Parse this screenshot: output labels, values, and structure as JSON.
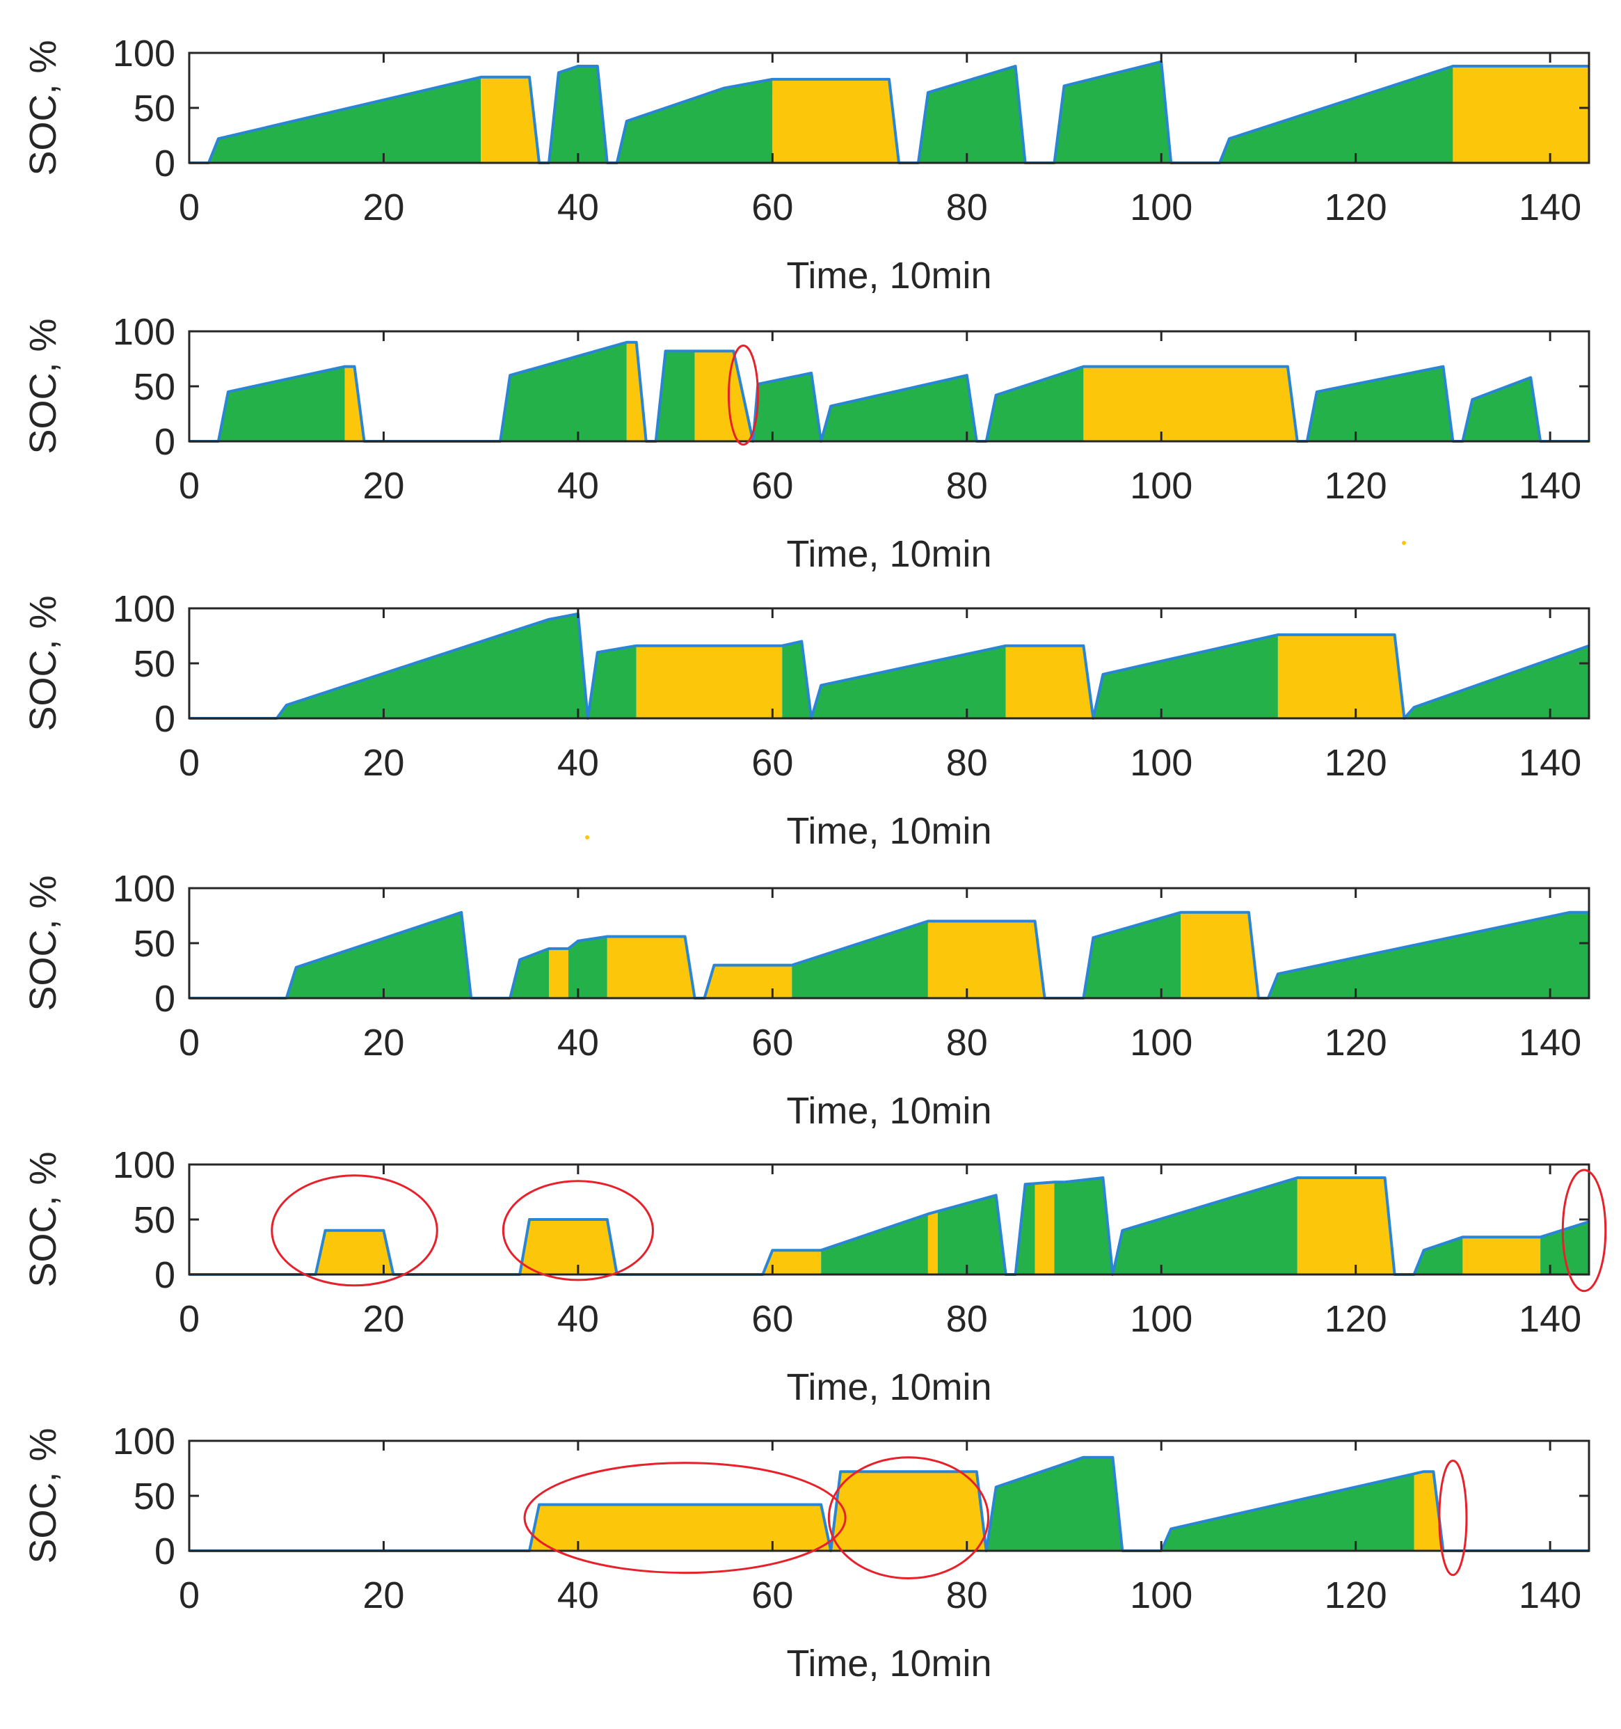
{
  "colors": {
    "green": "#24b14a",
    "yellow": "#fcc70a",
    "line": "#2a86d4",
    "annotation": "#e8202a",
    "axis": "#262626"
  },
  "chart_data": [
    {
      "type": "area",
      "xlabel": "Time, 10min",
      "ylabel": "SOC, %",
      "xlim": [
        0,
        144
      ],
      "ylim": [
        0,
        100
      ],
      "xticks": [
        0,
        20,
        40,
        60,
        80,
        100,
        120,
        140
      ],
      "yticks": [
        0,
        50,
        100
      ],
      "soc_profile": [
        [
          0,
          0
        ],
        [
          2,
          0
        ],
        [
          3,
          22
        ],
        [
          30,
          78
        ],
        [
          35,
          78
        ],
        [
          36,
          0
        ],
        [
          37,
          0
        ],
        [
          38,
          82
        ],
        [
          40,
          88
        ],
        [
          42,
          88
        ],
        [
          43,
          0
        ],
        [
          44,
          0
        ],
        [
          45,
          38
        ],
        [
          55,
          68
        ],
        [
          60,
          76
        ],
        [
          72,
          76
        ],
        [
          73,
          0
        ],
        [
          75,
          0
        ],
        [
          76,
          64
        ],
        [
          85,
          88
        ],
        [
          86,
          0
        ],
        [
          89,
          0
        ],
        [
          90,
          70
        ],
        [
          100,
          92
        ],
        [
          101,
          0
        ],
        [
          106,
          0
        ],
        [
          107,
          22
        ],
        [
          130,
          88
        ],
        [
          144,
          88
        ]
      ],
      "segments": [
        [
          2,
          30,
          "green"
        ],
        [
          30,
          36,
          "yellow"
        ],
        [
          37,
          43,
          "green"
        ],
        [
          44,
          60,
          "green"
        ],
        [
          60,
          73,
          "yellow"
        ],
        [
          75,
          86,
          "green"
        ],
        [
          89,
          101,
          "green"
        ],
        [
          106,
          130,
          "green"
        ],
        [
          130,
          144,
          "yellow"
        ]
      ],
      "annotations": []
    },
    {
      "type": "area",
      "xlabel": "Time, 10min",
      "ylabel": "SOC, %",
      "xlim": [
        0,
        144
      ],
      "ylim": [
        0,
        100
      ],
      "xticks": [
        0,
        20,
        40,
        60,
        80,
        100,
        120,
        140
      ],
      "yticks": [
        0,
        50,
        100
      ],
      "soc_profile": [
        [
          0,
          0
        ],
        [
          3,
          0
        ],
        [
          4,
          45
        ],
        [
          16,
          68
        ],
        [
          17,
          68
        ],
        [
          18,
          0
        ],
        [
          32,
          0
        ],
        [
          33,
          60
        ],
        [
          45,
          90
        ],
        [
          46,
          90
        ],
        [
          47,
          0
        ],
        [
          48,
          0
        ],
        [
          49,
          82
        ],
        [
          56,
          82
        ],
        [
          58,
          0
        ],
        [
          58.5,
          52
        ],
        [
          64,
          62
        ],
        [
          65,
          0
        ],
        [
          66,
          32
        ],
        [
          80,
          60
        ],
        [
          81,
          0
        ],
        [
          82,
          0
        ],
        [
          83,
          42
        ],
        [
          92,
          68
        ],
        [
          113,
          68
        ],
        [
          114,
          0
        ],
        [
          115,
          0
        ],
        [
          116,
          45
        ],
        [
          129,
          68
        ],
        [
          130,
          0
        ],
        [
          131,
          0
        ],
        [
          132,
          38
        ],
        [
          138,
          58
        ],
        [
          139,
          0
        ],
        [
          144,
          0
        ]
      ],
      "segments": [
        [
          3,
          16,
          "green"
        ],
        [
          16,
          18,
          "yellow"
        ],
        [
          32,
          45,
          "green"
        ],
        [
          45,
          47,
          "yellow"
        ],
        [
          48,
          52,
          "green"
        ],
        [
          52,
          58,
          "yellow"
        ],
        [
          58,
          65,
          "green"
        ],
        [
          65,
          81,
          "green"
        ],
        [
          82,
          92,
          "green"
        ],
        [
          92,
          114,
          "yellow"
        ],
        [
          115,
          130,
          "green"
        ],
        [
          131,
          139,
          "green"
        ]
      ],
      "annotations": [
        [
          57,
          42,
          1.5,
          45
        ]
      ]
    },
    {
      "type": "area",
      "xlabel": "Time, 10min",
      "ylabel": "SOC, %",
      "xlim": [
        0,
        144
      ],
      "ylim": [
        0,
        100
      ],
      "xticks": [
        0,
        20,
        40,
        60,
        80,
        100,
        120,
        140
      ],
      "yticks": [
        0,
        50,
        100
      ],
      "soc_profile": [
        [
          0,
          0
        ],
        [
          9,
          0
        ],
        [
          10,
          12
        ],
        [
          37,
          90
        ],
        [
          40,
          95
        ],
        [
          41,
          0
        ],
        [
          42,
          60
        ],
        [
          46,
          66
        ],
        [
          61,
          66
        ],
        [
          63,
          70
        ],
        [
          64,
          0
        ],
        [
          65,
          30
        ],
        [
          84,
          66
        ],
        [
          92,
          66
        ],
        [
          93,
          0
        ],
        [
          94,
          40
        ],
        [
          112,
          76
        ],
        [
          124,
          76
        ],
        [
          125,
          0
        ],
        [
          126,
          10
        ],
        [
          144,
          66
        ]
      ],
      "segments": [
        [
          9,
          46,
          "green"
        ],
        [
          46,
          61,
          "yellow"
        ],
        [
          61,
          64,
          "green"
        ],
        [
          64,
          84,
          "green"
        ],
        [
          84,
          93,
          "yellow"
        ],
        [
          93,
          112,
          "green"
        ],
        [
          112,
          125,
          "yellow"
        ],
        [
          125,
          144,
          "green"
        ]
      ],
      "annotations": []
    },
    {
      "type": "area",
      "xlabel": "Time, 10min",
      "ylabel": "SOC, %",
      "xlim": [
        0,
        144
      ],
      "ylim": [
        0,
        100
      ],
      "xticks": [
        0,
        20,
        40,
        60,
        80,
        100,
        120,
        140
      ],
      "yticks": [
        0,
        50,
        100
      ],
      "soc_profile": [
        [
          0,
          0
        ],
        [
          10,
          0
        ],
        [
          11,
          28
        ],
        [
          28,
          78
        ],
        [
          29,
          0
        ],
        [
          33,
          0
        ],
        [
          34,
          35
        ],
        [
          37,
          45
        ],
        [
          39,
          45
        ],
        [
          40,
          52
        ],
        [
          43,
          56
        ],
        [
          51,
          56
        ],
        [
          52,
          0
        ],
        [
          53,
          0
        ],
        [
          54,
          30
        ],
        [
          62,
          30
        ],
        [
          76,
          70
        ],
        [
          87,
          70
        ],
        [
          88,
          0
        ],
        [
          92,
          0
        ],
        [
          93,
          55
        ],
        [
          102,
          78
        ],
        [
          109,
          78
        ],
        [
          110,
          0
        ],
        [
          111,
          0
        ],
        [
          112,
          22
        ],
        [
          142,
          78
        ],
        [
          144,
          78
        ]
      ],
      "segments": [
        [
          10,
          29,
          "green"
        ],
        [
          33,
          37,
          "green"
        ],
        [
          37,
          39,
          "yellow"
        ],
        [
          39,
          43,
          "green"
        ],
        [
          43,
          52,
          "yellow"
        ],
        [
          53,
          62,
          "yellow"
        ],
        [
          62,
          76,
          "green"
        ],
        [
          76,
          88,
          "yellow"
        ],
        [
          92,
          102,
          "green"
        ],
        [
          102,
          110,
          "yellow"
        ],
        [
          111,
          144,
          "green"
        ]
      ],
      "annotations": []
    },
    {
      "type": "area",
      "xlabel": "Time, 10min",
      "ylabel": "SOC, %",
      "xlim": [
        0,
        144
      ],
      "ylim": [
        0,
        100
      ],
      "xticks": [
        0,
        20,
        40,
        60,
        80,
        100,
        120,
        140
      ],
      "yticks": [
        0,
        50,
        100
      ],
      "soc_profile": [
        [
          0,
          0
        ],
        [
          13,
          0
        ],
        [
          14,
          40
        ],
        [
          20,
          40
        ],
        [
          21,
          0
        ],
        [
          34,
          0
        ],
        [
          35,
          50
        ],
        [
          43,
          50
        ],
        [
          44,
          0
        ],
        [
          59,
          0
        ],
        [
          60,
          22
        ],
        [
          65,
          22
        ],
        [
          76,
          55
        ],
        [
          83,
          72
        ],
        [
          84,
          0
        ],
        [
          85,
          0
        ],
        [
          86,
          82
        ],
        [
          89,
          84
        ],
        [
          90,
          84
        ],
        [
          94,
          88
        ],
        [
          95,
          0
        ],
        [
          96,
          40
        ],
        [
          114,
          88
        ],
        [
          123,
          88
        ],
        [
          124,
          0
        ],
        [
          126,
          0
        ],
        [
          127,
          22
        ],
        [
          131,
          34
        ],
        [
          139,
          34
        ],
        [
          144,
          48
        ]
      ],
      "segments": [
        [
          13,
          21,
          "yellow"
        ],
        [
          34,
          44,
          "yellow"
        ],
        [
          59,
          65,
          "yellow"
        ],
        [
          65,
          76,
          "green"
        ],
        [
          76,
          77,
          "yellow"
        ],
        [
          77,
          84,
          "green"
        ],
        [
          85,
          87,
          "green"
        ],
        [
          87,
          89,
          "yellow"
        ],
        [
          89,
          95,
          "green"
        ],
        [
          95,
          114,
          "green"
        ],
        [
          114,
          124,
          "yellow"
        ],
        [
          126,
          131,
          "green"
        ],
        [
          131,
          139,
          "yellow"
        ],
        [
          139,
          144,
          "green"
        ]
      ],
      "annotations": [
        [
          17,
          40,
          8.5,
          50
        ],
        [
          40,
          40,
          7.7,
          45
        ],
        [
          143.5,
          40,
          2.2,
          55
        ]
      ]
    },
    {
      "type": "area",
      "xlabel": "Time, 10min",
      "ylabel": "SOC, %",
      "xlim": [
        0,
        144
      ],
      "ylim": [
        0,
        100
      ],
      "xticks": [
        0,
        20,
        40,
        60,
        80,
        100,
        120,
        140
      ],
      "yticks": [
        0,
        50,
        100
      ],
      "soc_profile": [
        [
          0,
          0
        ],
        [
          35,
          0
        ],
        [
          36,
          42
        ],
        [
          65,
          42
        ],
        [
          66,
          0
        ],
        [
          67,
          72
        ],
        [
          81,
          72
        ],
        [
          82,
          0
        ],
        [
          83,
          58
        ],
        [
          92,
          85
        ],
        [
          95,
          85
        ],
        [
          96,
          0
        ],
        [
          100,
          0
        ],
        [
          101,
          20
        ],
        [
          127,
          72
        ],
        [
          128,
          72
        ],
        [
          129,
          0
        ],
        [
          144,
          0
        ]
      ],
      "segments": [
        [
          35,
          66,
          "yellow"
        ],
        [
          66,
          82,
          "yellow"
        ],
        [
          82,
          96,
          "green"
        ],
        [
          100,
          126,
          "green"
        ],
        [
          126,
          129,
          "yellow"
        ]
      ],
      "annotations": [
        [
          51,
          30,
          16.5,
          50
        ],
        [
          74,
          30,
          8.2,
          55
        ],
        [
          130,
          30,
          1.4,
          52
        ]
      ]
    }
  ]
}
